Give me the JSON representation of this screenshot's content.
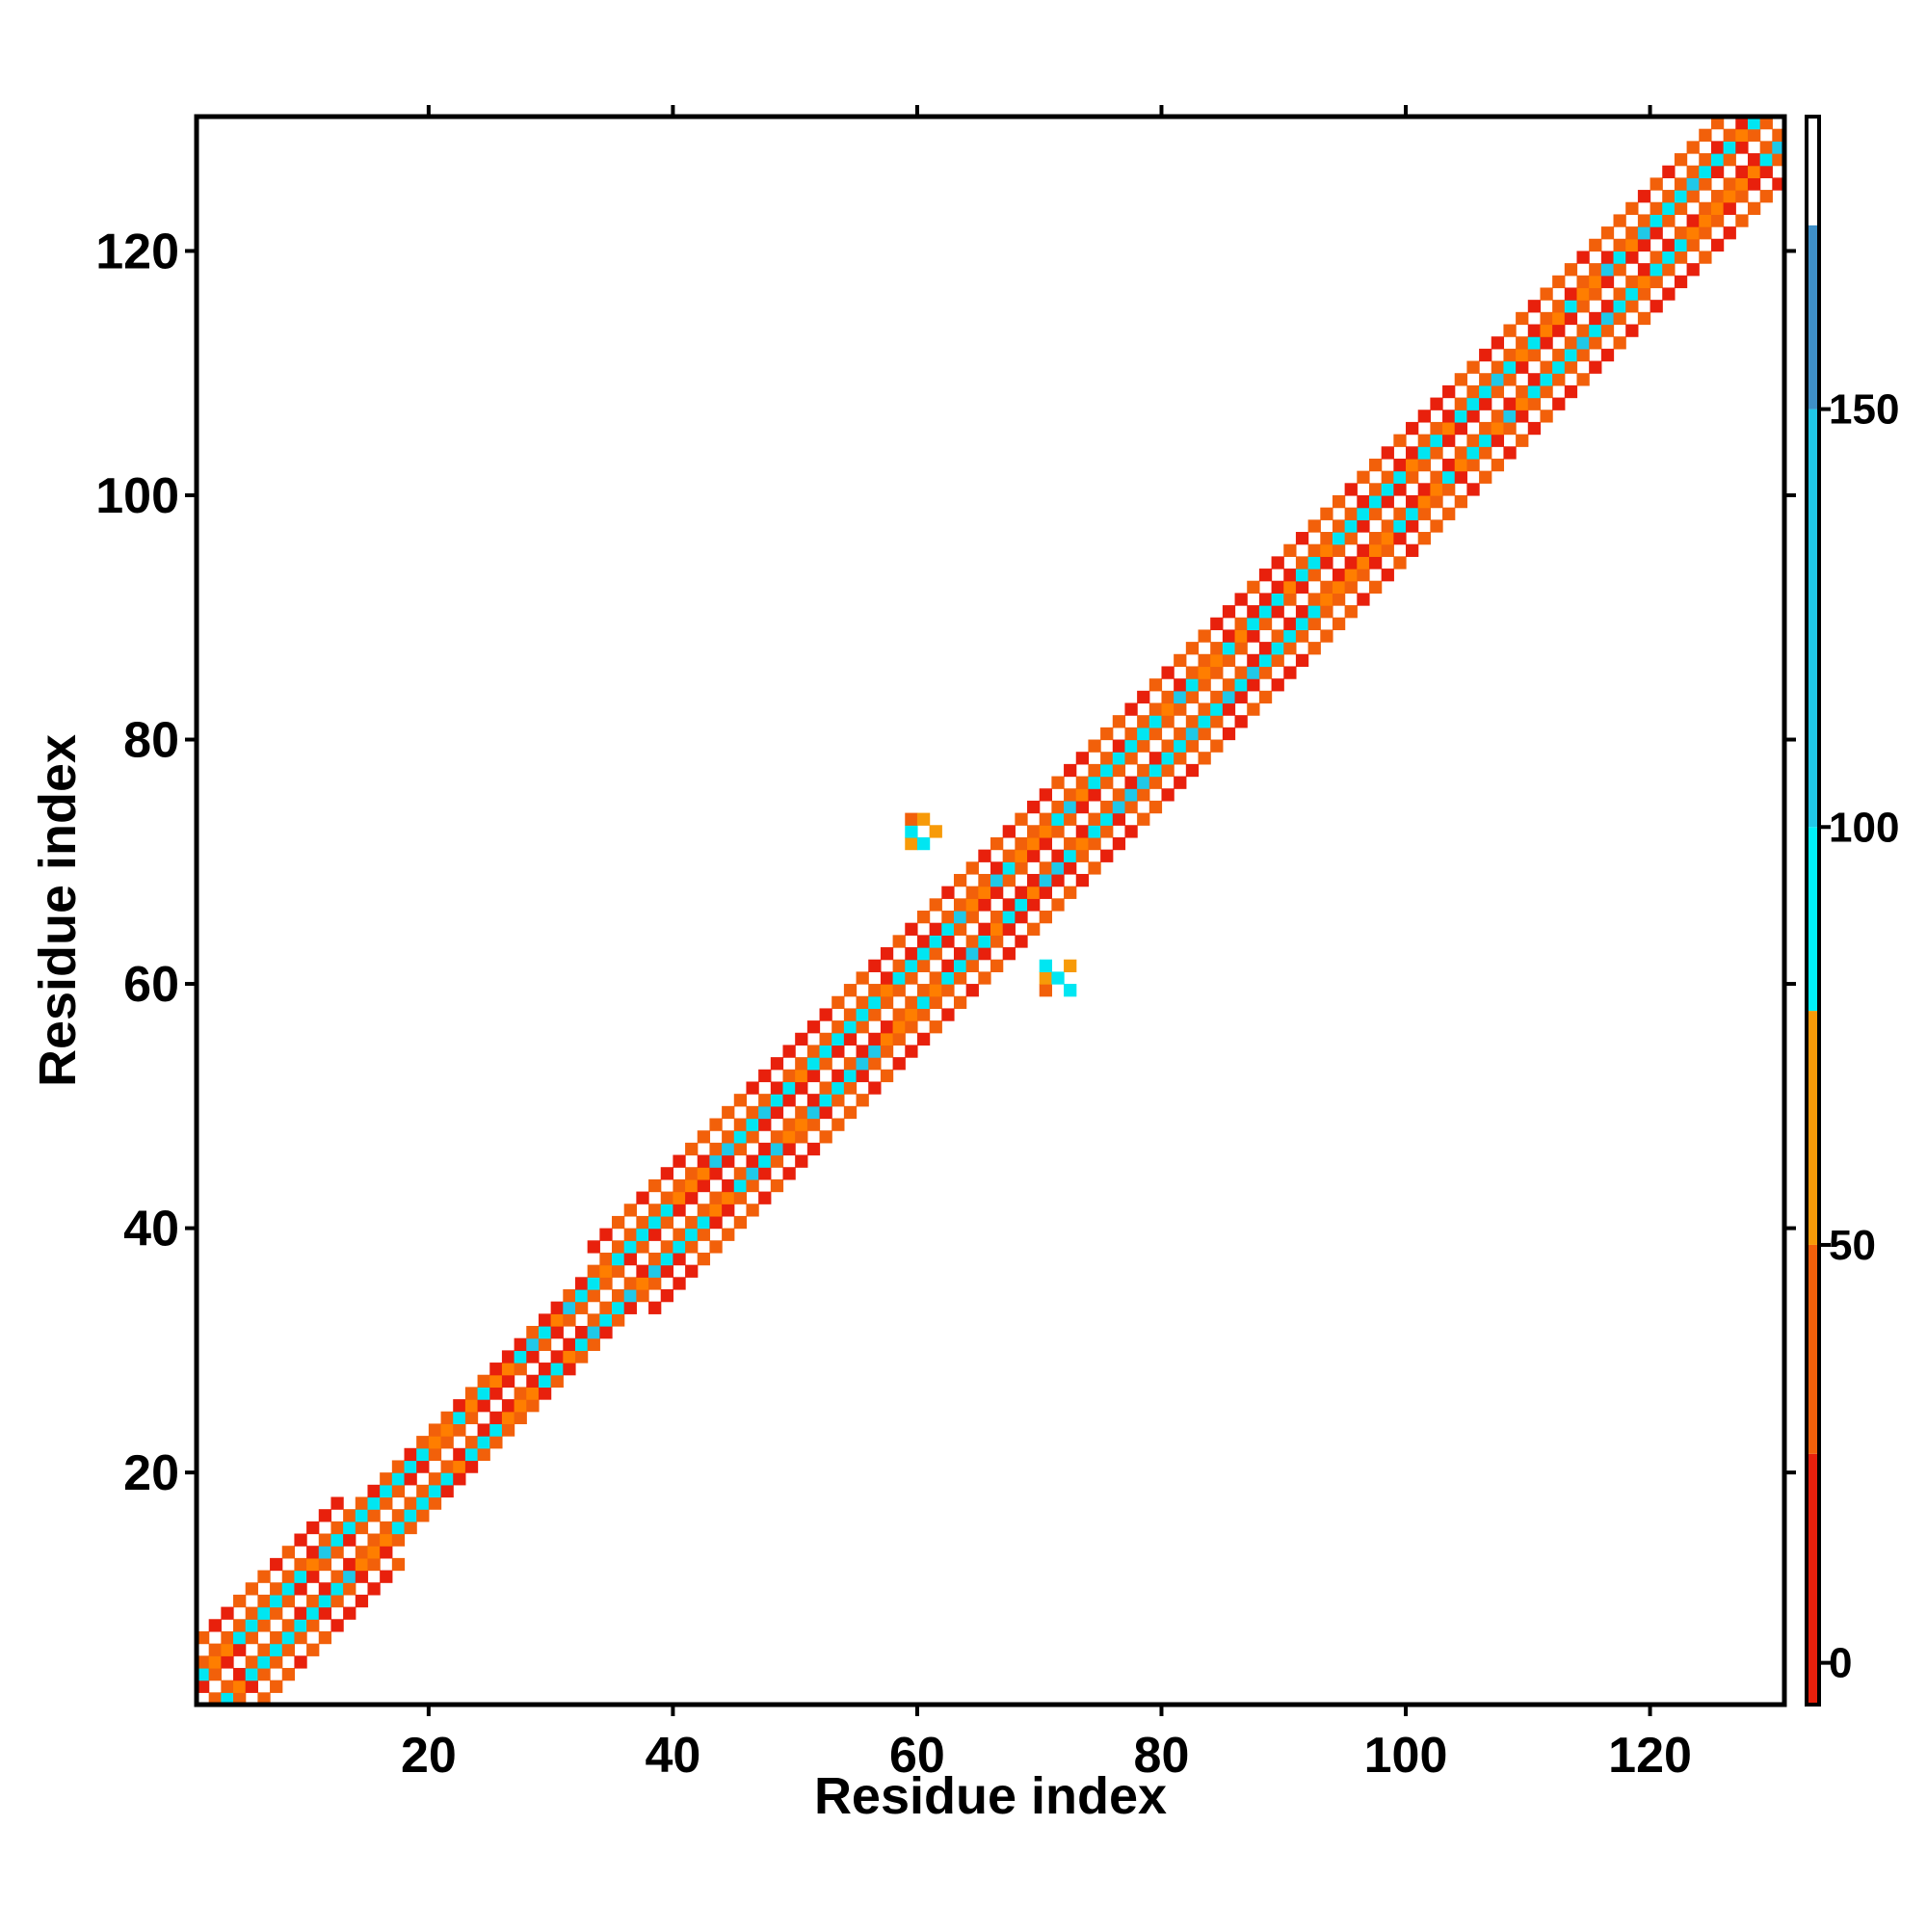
{
  "chart_data": {
    "type": "heatmap",
    "title": "",
    "xlabel": "Residue index",
    "ylabel": "Residue index",
    "xlim": [
      1,
      130
    ],
    "ylim": [
      1,
      130
    ],
    "x_ticks": [
      20,
      40,
      60,
      80,
      100,
      120
    ],
    "y_ticks": [
      20,
      40,
      60,
      80,
      100,
      120
    ],
    "grid": false,
    "band": {
      "description": "contact map band along the diagonal; cells at |i-j| <= half_width",
      "segments": [
        {
          "from": 1,
          "to": 14,
          "half_width": 5
        },
        {
          "from": 14,
          "to": 34,
          "half_width": 4
        },
        {
          "from": 34,
          "to": 56,
          "half_width": 6
        },
        {
          "from": 56,
          "to": 66,
          "half_width": 5
        },
        {
          "from": 66,
          "to": 88,
          "half_width": 6
        },
        {
          "from": 88,
          "to": 105,
          "half_width": 6
        },
        {
          "from": 105,
          "to": 130,
          "half_width": 6
        }
      ]
    },
    "off_diagonal_clusters": [
      {
        "x": [
          59,
          61
        ],
        "y": [
          71,
          73
        ]
      },
      {
        "x": [
          70,
          72
        ],
        "y": [
          59,
          61
        ]
      }
    ],
    "colorbar": {
      "range": [
        -5,
        185
      ],
      "ticks": [
        0,
        50,
        100,
        150
      ],
      "stops": [
        {
          "from": -5,
          "to": 25,
          "color": "#e8200c"
        },
        {
          "from": 25,
          "to": 50,
          "color": "#f2600a"
        },
        {
          "from": 50,
          "to": 78,
          "color": "#f79a08"
        },
        {
          "from": 78,
          "to": 100,
          "color": "#00f0f8"
        },
        {
          "from": 100,
          "to": 150,
          "color": "#20c8e8"
        },
        {
          "from": 150,
          "to": 172,
          "color": "#3f90c8"
        },
        {
          "from": 172,
          "to": 185,
          "color": "#ffffff"
        }
      ]
    },
    "palette": [
      "#e8200c",
      "#f2600a",
      "#ff7e00",
      "#f79a08",
      "#00e6f2",
      "#20c8e8",
      "#3f9fd0"
    ]
  }
}
